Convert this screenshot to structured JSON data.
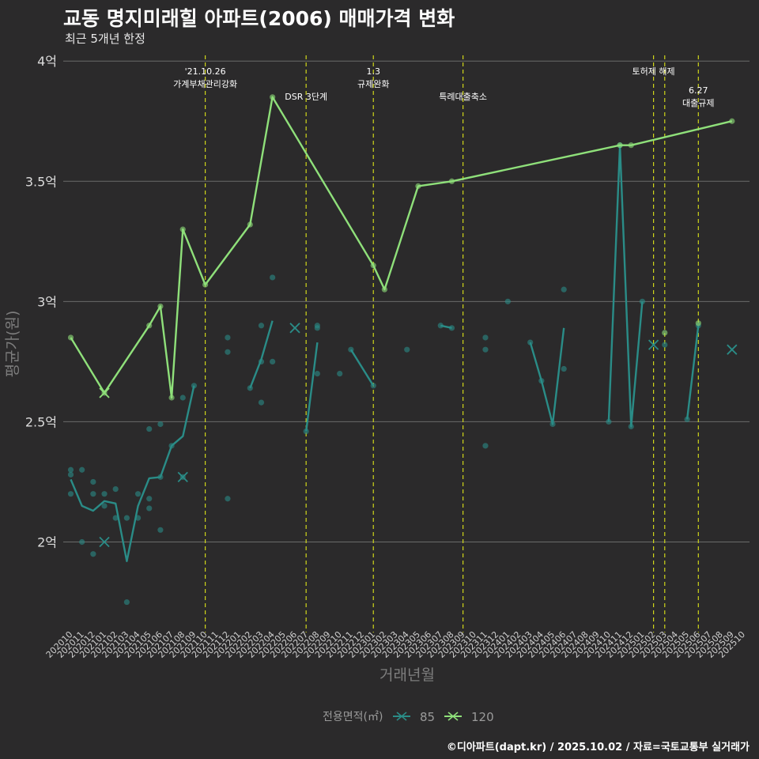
{
  "title": "교동 명지미래힐 아파트(2006) 매매가격 변화",
  "subtitle": "최근 5개년 한정",
  "caption": "©디아파트(dapt.kr) / 2025.10.02 / 자료=국토교통부 실거래가",
  "colors": {
    "background": "#2b2a2b",
    "grid": "#6b6b6b",
    "s85": "#2a8c87",
    "s120": "#8fe07a",
    "vline": "#cfd61a"
  },
  "chart_data": {
    "type": "line",
    "title": "교동 명지미래힐 아파트(2006) 매매가격 변화",
    "subtitle": "최근 5개년 한정",
    "xlabel": "거래년월",
    "ylabel": "평균가(원)",
    "ylim": [
      1.64,
      4.05
    ],
    "y_ticks": [
      {
        "value": 2,
        "label": "2억"
      },
      {
        "value": 2.5,
        "label": "2.5억"
      },
      {
        "value": 3,
        "label": "3억"
      },
      {
        "value": 3.5,
        "label": "3.5억"
      },
      {
        "value": 4,
        "label": "4억"
      }
    ],
    "categories": [
      "202010",
      "202011",
      "202012",
      "202101",
      "202102",
      "202103",
      "202104",
      "202105",
      "202106",
      "202107",
      "202108",
      "202109",
      "202110",
      "202111",
      "202112",
      "202201",
      "202202",
      "202203",
      "202204",
      "202205",
      "202206",
      "202207",
      "202208",
      "202209",
      "202210",
      "202211",
      "202212",
      "202301",
      "202302",
      "202303",
      "202304",
      "202305",
      "202306",
      "202307",
      "202308",
      "202309",
      "202310",
      "202311",
      "202312",
      "202401",
      "202402",
      "202403",
      "202404",
      "202405",
      "202406",
      "202407",
      "202408",
      "202409",
      "202410",
      "202411",
      "202412",
      "202501",
      "202502",
      "202503",
      "202504",
      "202505",
      "202506",
      "202507",
      "202508",
      "202509",
      "202510"
    ],
    "legend": {
      "title": "전용면적(㎡)",
      "entries": [
        "85",
        "120"
      ],
      "position": "bottom"
    },
    "series": [
      {
        "name": "85",
        "color": "#2a8c87",
        "segments": [
          [
            [
              0,
              2.26
            ],
            [
              1,
              2.15
            ],
            [
              2,
              2.13
            ],
            [
              3,
              2.17
            ],
            [
              4,
              2.16
            ],
            [
              5,
              1.92
            ],
            [
              6,
              2.15
            ],
            [
              7,
              2.265
            ],
            [
              8,
              2.27
            ],
            [
              9,
              2.4
            ],
            [
              10,
              2.44
            ],
            [
              11,
              2.65
            ]
          ],
          [
            [
              16,
              2.64
            ],
            [
              17,
              2.76
            ],
            [
              18,
              2.92
            ]
          ],
          [
            [
              21,
              2.46
            ],
            [
              22,
              2.83
            ]
          ],
          [
            [
              25,
              2.8
            ],
            [
              27,
              2.65
            ]
          ],
          [
            [
              33,
              2.9
            ],
            [
              34,
              2.89
            ]
          ],
          [
            [
              41,
              2.83
            ],
            [
              42,
              2.67
            ],
            [
              43,
              2.49
            ],
            [
              44,
              2.89
            ]
          ],
          [
            [
              48,
              2.5
            ],
            [
              49,
              3.65
            ],
            [
              50,
              2.48
            ],
            [
              51,
              3.0
            ]
          ],
          [
            [
              55,
              2.51
            ],
            [
              56,
              2.9
            ]
          ]
        ],
        "points": [
          [
            0,
            2.3
          ],
          [
            0,
            2.28
          ],
          [
            0,
            2.2
          ],
          [
            1,
            2.3
          ],
          [
            1,
            2.0
          ],
          [
            2,
            2.25
          ],
          [
            2,
            2.2
          ],
          [
            2,
            1.95
          ],
          [
            3,
            2.2
          ],
          [
            3,
            2.15
          ],
          [
            4,
            2.22
          ],
          [
            4,
            2.1
          ],
          [
            5,
            2.1
          ],
          [
            5,
            1.75
          ],
          [
            6,
            2.2
          ],
          [
            6,
            2.1
          ],
          [
            7,
            2.47
          ],
          [
            7,
            2.18
          ],
          [
            7,
            2.14
          ],
          [
            8,
            2.49
          ],
          [
            8,
            2.27
          ],
          [
            8,
            2.05
          ],
          [
            9,
            2.4
          ],
          [
            10,
            2.6
          ],
          [
            10,
            2.27
          ],
          [
            11,
            2.65
          ],
          [
            14,
            2.85
          ],
          [
            14,
            2.79
          ],
          [
            14,
            2.18
          ],
          [
            16,
            2.64
          ],
          [
            17,
            2.9
          ],
          [
            17,
            2.75
          ],
          [
            17,
            2.58
          ],
          [
            18,
            3.1
          ],
          [
            18,
            2.75
          ],
          [
            21,
            2.46
          ],
          [
            22,
            2.9
          ],
          [
            22,
            2.89
          ],
          [
            22,
            2.7
          ],
          [
            24,
            2.7
          ],
          [
            25,
            2.8
          ],
          [
            27,
            2.65
          ],
          [
            30,
            2.8
          ],
          [
            33,
            2.9
          ],
          [
            34,
            2.89
          ],
          [
            37,
            2.85
          ],
          [
            37,
            2.8
          ],
          [
            37,
            2.4
          ],
          [
            39,
            3.0
          ],
          [
            41,
            2.83
          ],
          [
            42,
            2.67
          ],
          [
            43,
            2.49
          ],
          [
            44,
            3.05
          ],
          [
            44,
            2.72
          ],
          [
            48,
            2.5
          ],
          [
            49,
            3.65
          ],
          [
            50,
            2.48
          ],
          [
            51,
            3.0
          ],
          [
            53,
            2.82
          ],
          [
            55,
            2.51
          ],
          [
            56,
            2.9
          ]
        ],
        "single_trade_marks": [
          [
            3,
            2.0
          ],
          [
            10,
            2.27
          ],
          [
            20,
            2.89
          ],
          [
            52,
            2.82
          ],
          [
            59,
            2.8
          ]
        ]
      },
      {
        "name": "120",
        "color": "#8fe07a",
        "segments": [
          [
            [
              0,
              2.85
            ],
            [
              3,
              2.62
            ],
            [
              7,
              2.9
            ],
            [
              8,
              2.98
            ],
            [
              9,
              2.6
            ],
            [
              10,
              3.3
            ],
            [
              12,
              3.07
            ],
            [
              16,
              3.32
            ],
            [
              18,
              3.85
            ],
            [
              27,
              3.15
            ],
            [
              28,
              3.05
            ],
            [
              31,
              3.48
            ],
            [
              34,
              3.5
            ],
            [
              49,
              3.65
            ],
            [
              50,
              3.65
            ],
            [
              59,
              3.75
            ]
          ]
        ],
        "points": [
          [
            0,
            2.85
          ],
          [
            3,
            2.62
          ],
          [
            7,
            2.9
          ],
          [
            8,
            2.98
          ],
          [
            9,
            2.6
          ],
          [
            10,
            3.3
          ],
          [
            12,
            3.07
          ],
          [
            16,
            3.32
          ],
          [
            18,
            3.85
          ],
          [
            27,
            3.15
          ],
          [
            28,
            3.05
          ],
          [
            31,
            3.48
          ],
          [
            34,
            3.5
          ],
          [
            49,
            3.65
          ],
          [
            50,
            3.65
          ],
          [
            53,
            2.87
          ],
          [
            56,
            2.91
          ],
          [
            59,
            3.75
          ]
        ],
        "single_trade_marks": [
          [
            3,
            2.62
          ]
        ]
      }
    ],
    "annotations": [
      {
        "x": 12,
        "lines": [
          "'21.10.26",
          "가계부채관리강화"
        ],
        "row": 0
      },
      {
        "x": 21,
        "lines": [
          "DSR 3단계"
        ],
        "row": 1
      },
      {
        "x": 27,
        "lines": [
          "1.3",
          "규제완화"
        ],
        "row": 0
      },
      {
        "x": 35,
        "lines": [
          "특례대출축소"
        ],
        "row": 1
      },
      {
        "x": 52,
        "lines": [
          "토허제 해제"
        ],
        "row": 0
      },
      {
        "x": 53,
        "lines": [],
        "row": 0
      },
      {
        "x": 56,
        "lines": [
          "6.27",
          "대출규제"
        ],
        "row": 2
      }
    ]
  }
}
